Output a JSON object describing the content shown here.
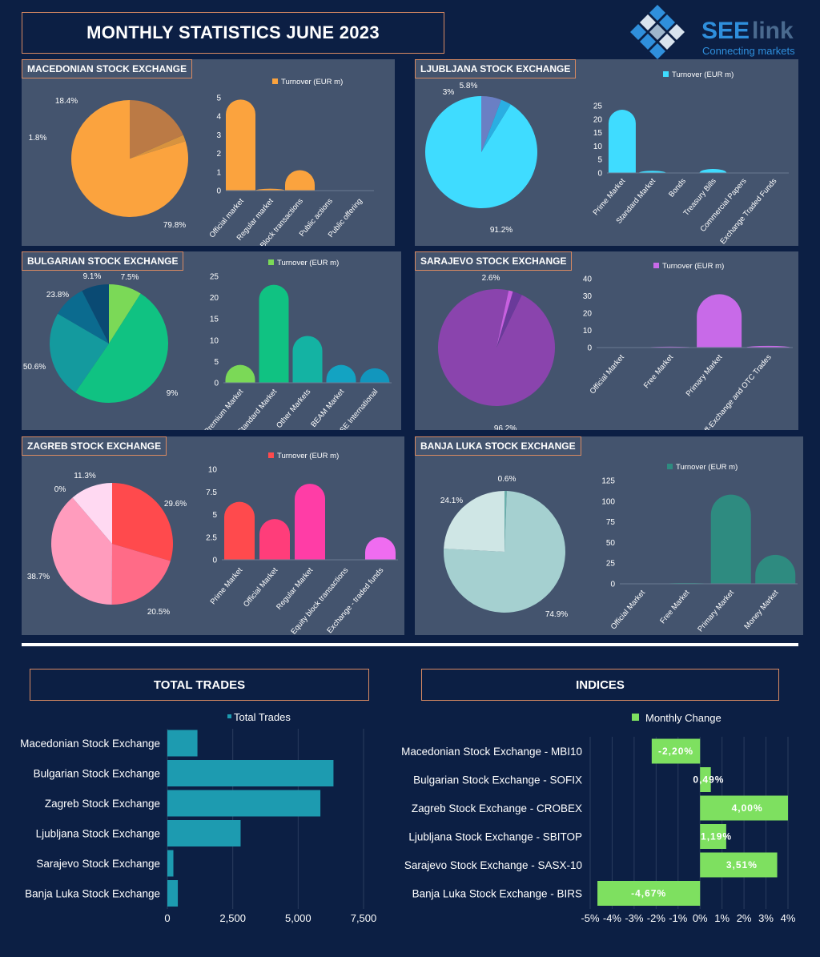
{
  "header": {
    "title": "MONTHLY STATISTICS JUNE 2023"
  },
  "logo": {
    "brand_a": "SEE",
    "brand_b": "link",
    "tagline": "Connecting markets",
    "color_a": "#2f8fdc",
    "color_b": "#4a6a8f"
  },
  "sections": {
    "total_trades": "TOTAL TRADES",
    "indices": "INDICES"
  },
  "chart_data": [
    {
      "id": "mse",
      "title": "MACEDONIAN STOCK EXCHANGE",
      "type": "pie",
      "slices": [
        {
          "label": "79.8%",
          "value": 79.8,
          "color": "#fba33e"
        },
        {
          "label": "1.8%",
          "value": 1.8,
          "color": "#d8933e"
        },
        {
          "label": "18.4%",
          "value": 18.4,
          "color": "#bb7a45"
        }
      ],
      "bar": {
        "type": "bar",
        "legend": "Turnover (EUR m)",
        "categories": [
          "Official market",
          "Regular market",
          "Block transactions",
          "Public actions",
          "Public offering"
        ],
        "values": [
          4.9,
          0.1,
          1.1,
          0,
          0
        ],
        "ylim": [
          0,
          5
        ],
        "ticks": [
          "0",
          "1",
          "2",
          "3",
          "4",
          "5"
        ],
        "colors": [
          "#fba33e",
          "#fba33e",
          "#fba33e",
          "#fba33e",
          "#fba33e"
        ]
      }
    },
    {
      "id": "lse",
      "title": "LJUBLJANA STOCK EXCHANGE",
      "type": "pie",
      "slices": [
        {
          "label": "91.2%",
          "value": 91.2,
          "color": "#3fdcff"
        },
        {
          "label": "3%",
          "value": 3.0,
          "color": "#2aaee2"
        },
        {
          "label": "5.8%",
          "value": 5.8,
          "color": "#6a7fc4"
        }
      ],
      "bar": {
        "type": "bar",
        "legend": "Turnover (EUR m)",
        "categories": [
          "Prime Market",
          "Standard Market",
          "Bonds",
          "Treasury Bills",
          "Commercial Papers",
          "Exchange Traded Funds"
        ],
        "values": [
          23.5,
          0.8,
          0,
          1.5,
          0,
          0
        ],
        "ylim": [
          0,
          25
        ],
        "ticks": [
          "0",
          "5",
          "10",
          "15",
          "20",
          "25"
        ],
        "colors": [
          "#3fdcff",
          "#3fdcff",
          "#3fdcff",
          "#3fdcff",
          "#3fdcff",
          "#3fdcff"
        ]
      }
    },
    {
      "id": "bse",
      "title": "BULGARIAN STOCK EXCHANGE",
      "type": "pie",
      "slices": [
        {
          "label": "9%",
          "value": 9.0,
          "color": "#7bd957"
        },
        {
          "label": "50.6%",
          "value": 50.6,
          "color": "#10c282"
        },
        {
          "label": "23.8%",
          "value": 23.8,
          "color": "#149a9e"
        },
        {
          "label": "9.1%",
          "value": 9.1,
          "color": "#0b6b8f"
        },
        {
          "label": "7.5%",
          "value": 7.5,
          "color": "#0a4a73"
        }
      ],
      "bar": {
        "type": "bar",
        "legend": "Turnover (EUR m)",
        "categories": [
          "Premium Market",
          "Standard Market",
          "Other Markets",
          "BEAM Market",
          "BSE International"
        ],
        "values": [
          4.2,
          23,
          11,
          4.2,
          3.4
        ],
        "ylim": [
          0,
          25
        ],
        "ticks": [
          "0",
          "5",
          "10",
          "15",
          "20",
          "25"
        ],
        "colors": [
          "#7bd957",
          "#10c282",
          "#14b3a3",
          "#13a3c2",
          "#1296bd"
        ],
        "legend_color": "#7bd957"
      }
    },
    {
      "id": "sase",
      "title": "SARAJEVO STOCK EXCHANGE",
      "type": "pie",
      "slices": [
        {
          "label": "96.2%",
          "value": 96.2,
          "color": "#8a44ad"
        },
        {
          "label": "2.6%",
          "value": 2.6,
          "color": "#6a3a9a"
        },
        {
          "label": "",
          "value": 1.2,
          "color": "#c85fe0"
        }
      ],
      "bar": {
        "type": "bar",
        "legend": "Turnover (EUR m)",
        "categories": [
          "Official Market",
          "Free Market",
          "Primary Market",
          "Off-Exchange and OTC Trades"
        ],
        "values": [
          0.2,
          0.5,
          31,
          1
        ],
        "ylim": [
          0,
          40
        ],
        "ticks": [
          "0",
          "10",
          "20",
          "30",
          "40"
        ],
        "colors": [
          "#c86ae8",
          "#c86ae8",
          "#c86ae8",
          "#c86ae8"
        ]
      }
    },
    {
      "id": "zse",
      "title": "ZAGREB STOCK EXCHANGE",
      "type": "pie",
      "slices": [
        {
          "label": "29.6%",
          "value": 29.6,
          "color": "#ff4a4d"
        },
        {
          "label": "20.5%",
          "value": 20.5,
          "color": "#ff6b87"
        },
        {
          "label": "38.7%",
          "value": 38.7,
          "color": "#ff9cbd"
        },
        {
          "label": "11.3%",
          "value": 11.3,
          "color": "#ffd9f2"
        },
        {
          "label": "0%",
          "value": 0.0,
          "color": "#f5c0f5"
        }
      ],
      "bar": {
        "type": "bar",
        "legend": "Turnover (EUR m)",
        "categories": [
          "Prime Market",
          "Official Market",
          "Regular Market",
          "Equity block transactions",
          "Exchange - traded funds"
        ],
        "values": [
          6.4,
          4.5,
          8.4,
          0,
          2.5
        ],
        "ylim": [
          0,
          10
        ],
        "ticks": [
          "0",
          "2.5",
          "5",
          "7.5",
          "10"
        ],
        "colors": [
          "#ff4a4d",
          "#ff3d7a",
          "#ff3da6",
          "#ff3da6",
          "#ef6cf0"
        ],
        "legend_color": "#ff4a4d"
      }
    },
    {
      "id": "blse",
      "title": "BANJA LUKA STOCK EXCHANGE",
      "type": "pie",
      "slices": [
        {
          "label": "0.6%",
          "value": 0.6,
          "color": "#6ab0ac"
        },
        {
          "label": "74.9%",
          "value": 74.9,
          "color": "#a5d0d0"
        },
        {
          "label": "24.1%",
          "value": 24.1,
          "color": "#cfe6e5"
        }
      ],
      "bar": {
        "type": "bar",
        "legend": "Turnover (EUR m)",
        "categories": [
          "Official Market",
          "Free Market",
          "Primary Market",
          "Money Market"
        ],
        "values": [
          0.5,
          1,
          108,
          35
        ],
        "ylim": [
          0,
          125
        ],
        "ticks": [
          "0",
          "25",
          "50",
          "75",
          "100",
          "125"
        ],
        "colors": [
          "#2e8b80",
          "#2e8b80",
          "#2e8b80",
          "#2e8b80"
        ]
      }
    },
    {
      "id": "trades",
      "type": "bar",
      "orientation": "horizontal",
      "legend": "Total Trades",
      "color": "#1d9bb0",
      "categories": [
        "Macedonian Stock Exchange",
        "Bulgarian Stock Exchange",
        "Zagreb Stock Exchange",
        "Ljubljana Stock Exchange",
        "Sarajevo Stock Exchange",
        "Banja Luka Stock Exchange"
      ],
      "values": [
        1150,
        6350,
        5850,
        2800,
        230,
        400
      ],
      "xlim": [
        0,
        7500
      ],
      "ticks": [
        "0",
        "2,500",
        "5,000",
        "7,500"
      ]
    },
    {
      "id": "indices",
      "type": "bar",
      "orientation": "horizontal",
      "legend": "Monthly Change",
      "color": "#7ee060",
      "categories": [
        "Macedonian Stock Exchange - MBI10",
        "Bulgarian Stock Exchange - SOFIX",
        "Zagreb Stock Exchange - CROBEX",
        "Ljubljana Stock Exchange - SBITOP",
        "Sarajevo Stock Exchange - SASX-10",
        "Banja Luka Stock Exchange - BIRS"
      ],
      "values": [
        -2.2,
        0.49,
        4.0,
        1.19,
        3.51,
        -4.67
      ],
      "labels": [
        "-2,20%",
        "0,49%",
        "4,00%",
        "1,19%",
        "3,51%",
        "-4,67%"
      ],
      "xlim": [
        -5,
        4
      ],
      "ticks": [
        "-5%",
        "-4%",
        "-3%",
        "-2%",
        "-1%",
        "0%",
        "1%",
        "2%",
        "3%",
        "4%"
      ]
    }
  ]
}
